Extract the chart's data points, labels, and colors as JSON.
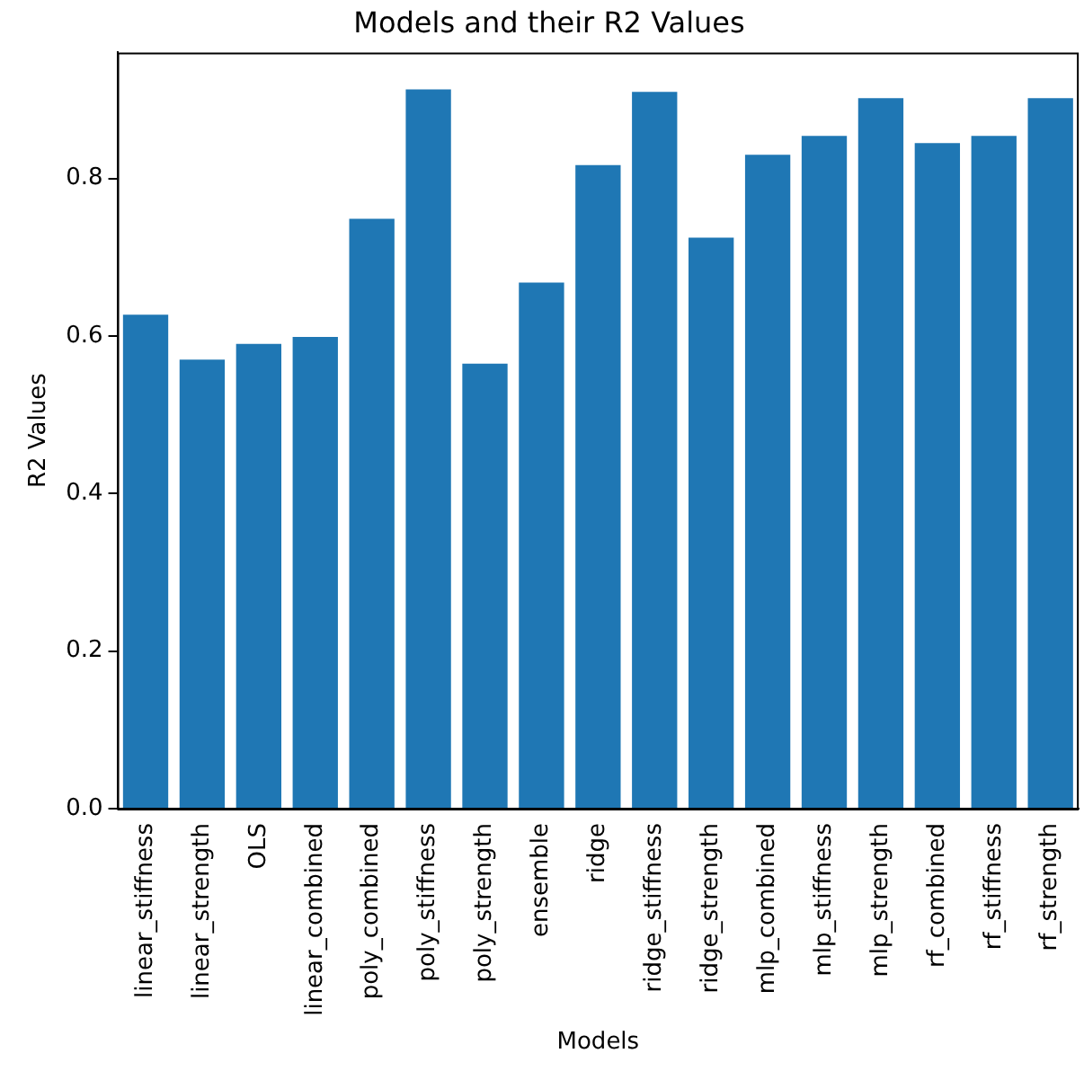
{
  "chart_data": {
    "type": "bar",
    "title": "Models and their R2 Values",
    "xlabel": "Models",
    "ylabel": "R2 Values",
    "categories": [
      "linear_stiffness",
      "linear_strength",
      "OLS",
      "linear_combined",
      "poly_combined",
      "poly_stiffness",
      "poly_strength",
      "ensemble",
      "ridge",
      "ridge_stiffness",
      "ridge_strength",
      "mlp_combined",
      "mlp_stiffness",
      "mlp_strength",
      "rf_combined",
      "rf_stiffness",
      "rf_strength"
    ],
    "values": [
      0.627,
      0.57,
      0.59,
      0.599,
      0.749,
      0.913,
      0.565,
      0.668,
      0.817,
      0.91,
      0.725,
      0.83,
      0.854,
      0.902,
      0.845,
      0.854,
      0.902
    ],
    "color": "#1f77b4",
    "ylim": [
      0,
      0.96
    ],
    "yticks": [
      {
        "value": 0,
        "label": "0.0"
      },
      {
        "value": 0.2,
        "label": "0.2"
      },
      {
        "value": 0.4,
        "label": "0.4"
      },
      {
        "value": 0.6,
        "label": "0.6"
      },
      {
        "value": 0.8,
        "label": "0.8"
      }
    ],
    "grid": false,
    "legend": false
  }
}
